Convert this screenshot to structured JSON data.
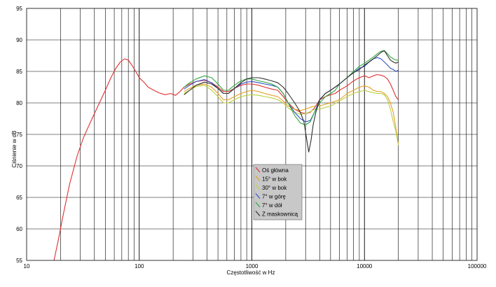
{
  "chart_data": {
    "type": "line",
    "title": "",
    "xlabel": "Częstotliwość w Hz",
    "ylabel": "Ciśnienie w dB",
    "x_scale": "log",
    "xlim": [
      10,
      100000
    ],
    "ylim": [
      55,
      95
    ],
    "x_ticks": [
      10,
      100,
      1000,
      10000,
      100000
    ],
    "x_tick_labels": [
      "10",
      "100",
      "1000",
      "10000",
      "100000"
    ],
    "y_ticks": [
      55,
      60,
      65,
      70,
      75,
      80,
      85,
      90,
      95
    ],
    "y_tick_labels": [
      "55",
      "60",
      "65",
      "70",
      "75",
      "80",
      "85",
      "90",
      "95"
    ],
    "grid": true,
    "legend_position": "center",
    "series": [
      {
        "name": "Oś główna",
        "color": "#e03030",
        "points": [
          [
            17.5,
            55
          ],
          [
            19,
            58
          ],
          [
            21,
            62
          ],
          [
            24,
            67
          ],
          [
            28,
            71.5
          ],
          [
            32,
            74.5
          ],
          [
            37,
            77
          ],
          [
            43,
            79.5
          ],
          [
            50,
            82
          ],
          [
            56,
            84
          ],
          [
            62,
            85.5
          ],
          [
            68,
            86.5
          ],
          [
            74,
            87
          ],
          [
            80,
            86.8
          ],
          [
            86,
            86
          ],
          [
            93,
            85
          ],
          [
            100,
            84
          ],
          [
            110,
            83.3
          ],
          [
            120,
            82.5
          ],
          [
            135,
            82
          ],
          [
            150,
            81.6
          ],
          [
            170,
            81.3
          ],
          [
            190,
            81.5
          ],
          [
            210,
            81.2
          ],
          [
            230,
            81.8
          ],
          [
            250,
            82.5
          ],
          [
            280,
            83
          ],
          [
            320,
            83.4
          ],
          [
            380,
            83.6
          ],
          [
            440,
            83.2
          ],
          [
            500,
            82.5
          ],
          [
            560,
            81.8
          ],
          [
            620,
            81.8
          ],
          [
            700,
            82.3
          ],
          [
            800,
            82.8
          ],
          [
            900,
            83
          ],
          [
            1000,
            83
          ],
          [
            1150,
            82.8
          ],
          [
            1300,
            82.5
          ],
          [
            1500,
            82.2
          ],
          [
            1700,
            82
          ],
          [
            1900,
            81
          ],
          [
            2100,
            80
          ],
          [
            2400,
            79
          ],
          [
            2700,
            78.5
          ],
          [
            3000,
            78.3
          ],
          [
            3300,
            78.5
          ],
          [
            3600,
            79.2
          ],
          [
            4000,
            80.5
          ],
          [
            4500,
            81
          ],
          [
            5000,
            81.3
          ],
          [
            5500,
            81.5
          ],
          [
            6000,
            82
          ],
          [
            7000,
            82.7
          ],
          [
            8000,
            83.5
          ],
          [
            9000,
            84
          ],
          [
            10000,
            84.3
          ],
          [
            11000,
            84
          ],
          [
            12000,
            84.3
          ],
          [
            13000,
            84.5
          ],
          [
            14000,
            84.4
          ],
          [
            15000,
            84.2
          ],
          [
            16000,
            83.8
          ],
          [
            17000,
            83
          ],
          [
            18000,
            82
          ],
          [
            19000,
            81
          ],
          [
            20000,
            80.5
          ]
        ]
      },
      {
        "name": "15° w bok",
        "color": "#e6a020",
        "points": [
          [
            250,
            81.8
          ],
          [
            280,
            82.3
          ],
          [
            320,
            82.8
          ],
          [
            380,
            83
          ],
          [
            440,
            82.5
          ],
          [
            500,
            81.5
          ],
          [
            560,
            80.5
          ],
          [
            620,
            80.5
          ],
          [
            700,
            81
          ],
          [
            800,
            81.5
          ],
          [
            900,
            81.8
          ],
          [
            1000,
            82
          ],
          [
            1150,
            81.8
          ],
          [
            1300,
            81.5
          ],
          [
            1500,
            81.2
          ],
          [
            1700,
            81
          ],
          [
            1900,
            80.3
          ],
          [
            2100,
            79.5
          ],
          [
            2400,
            79
          ],
          [
            2700,
            78.8
          ],
          [
            3000,
            79
          ],
          [
            3300,
            79.3
          ],
          [
            3600,
            79.5
          ],
          [
            4000,
            79.5
          ],
          [
            4500,
            79.8
          ],
          [
            5000,
            80
          ],
          [
            6000,
            80.5
          ],
          [
            7000,
            81.5
          ],
          [
            8000,
            82
          ],
          [
            9000,
            82.5
          ],
          [
            10000,
            82.7
          ],
          [
            11000,
            82.5
          ],
          [
            12000,
            82
          ],
          [
            13000,
            81.8
          ],
          [
            14000,
            81.8
          ],
          [
            15000,
            81.5
          ],
          [
            16000,
            81
          ],
          [
            17000,
            80
          ],
          [
            18000,
            78.5
          ],
          [
            19000,
            76
          ],
          [
            20000,
            73.5
          ]
        ]
      },
      {
        "name": "30° w bok",
        "color": "#b8d040",
        "points": [
          [
            250,
            81.5
          ],
          [
            280,
            82
          ],
          [
            320,
            82.6
          ],
          [
            380,
            82.8
          ],
          [
            440,
            82
          ],
          [
            500,
            81
          ],
          [
            560,
            80
          ],
          [
            620,
            80
          ],
          [
            700,
            80.5
          ],
          [
            800,
            81
          ],
          [
            900,
            81.2
          ],
          [
            1000,
            81.3
          ],
          [
            1150,
            81.2
          ],
          [
            1300,
            81
          ],
          [
            1500,
            80.8
          ],
          [
            1700,
            80.5
          ],
          [
            1900,
            80
          ],
          [
            2100,
            79.2
          ],
          [
            2400,
            78.5
          ],
          [
            2700,
            78.2
          ],
          [
            3000,
            78.3
          ],
          [
            3300,
            78.6
          ],
          [
            3600,
            79
          ],
          [
            4000,
            79
          ],
          [
            4500,
            79.3
          ],
          [
            5000,
            79.5
          ],
          [
            6000,
            80.3
          ],
          [
            7000,
            81
          ],
          [
            8000,
            81.5
          ],
          [
            9000,
            81.8
          ],
          [
            10000,
            82
          ],
          [
            11000,
            81.8
          ],
          [
            12000,
            81.6
          ],
          [
            13000,
            81.5
          ],
          [
            14000,
            81.5
          ],
          [
            15000,
            81.3
          ],
          [
            16000,
            80.5
          ],
          [
            17000,
            79
          ],
          [
            18000,
            77
          ],
          [
            19000,
            75.5
          ],
          [
            20000,
            73.3
          ]
        ]
      },
      {
        "name": "7° w górę",
        "color": "#3050c8",
        "points": [
          [
            250,
            82.2
          ],
          [
            280,
            82.8
          ],
          [
            320,
            83.4
          ],
          [
            380,
            83.7
          ],
          [
            440,
            83.2
          ],
          [
            500,
            82.3
          ],
          [
            560,
            81.5
          ],
          [
            620,
            81.5
          ],
          [
            700,
            82.3
          ],
          [
            800,
            83
          ],
          [
            900,
            83.3
          ],
          [
            1000,
            83.4
          ],
          [
            1150,
            83.2
          ],
          [
            1300,
            83
          ],
          [
            1500,
            82.8
          ],
          [
            1700,
            82.5
          ],
          [
            1900,
            81.5
          ],
          [
            2100,
            80
          ],
          [
            2400,
            78.5
          ],
          [
            2700,
            77.5
          ],
          [
            3000,
            77
          ],
          [
            3300,
            77.2
          ],
          [
            3600,
            78.5
          ],
          [
            4000,
            80.5
          ],
          [
            4500,
            81.5
          ],
          [
            5000,
            82
          ],
          [
            5500,
            82.5
          ],
          [
            6000,
            83
          ],
          [
            7000,
            84
          ],
          [
            8000,
            84.8
          ],
          [
            9000,
            85.5
          ],
          [
            10000,
            85.8
          ],
          [
            11000,
            86.5
          ],
          [
            12000,
            87
          ],
          [
            13000,
            87.2
          ],
          [
            14000,
            87
          ],
          [
            15000,
            86.5
          ],
          [
            16000,
            86
          ],
          [
            17000,
            85.5
          ],
          [
            18000,
            85.3
          ],
          [
            19000,
            85
          ],
          [
            20000,
            85.2
          ]
        ]
      },
      {
        "name": "7° w dół",
        "color": "#30a840",
        "points": [
          [
            250,
            82.5
          ],
          [
            280,
            83.2
          ],
          [
            320,
            83.8
          ],
          [
            380,
            84.3
          ],
          [
            440,
            84
          ],
          [
            500,
            83
          ],
          [
            560,
            82
          ],
          [
            620,
            82
          ],
          [
            700,
            82.8
          ],
          [
            800,
            83.5
          ],
          [
            900,
            83.8
          ],
          [
            1000,
            83.8
          ],
          [
            1150,
            83.5
          ],
          [
            1300,
            83.3
          ],
          [
            1500,
            83
          ],
          [
            1700,
            82.5
          ],
          [
            1900,
            81.5
          ],
          [
            2100,
            80
          ],
          [
            2400,
            78
          ],
          [
            2700,
            76.8
          ],
          [
            3000,
            76.5
          ],
          [
            3300,
            77
          ],
          [
            3600,
            78.5
          ],
          [
            4000,
            80
          ],
          [
            4500,
            81
          ],
          [
            5000,
            81.5
          ],
          [
            5500,
            82
          ],
          [
            6000,
            83
          ],
          [
            7000,
            84
          ],
          [
            8000,
            85
          ],
          [
            9000,
            85.8
          ],
          [
            10000,
            86.3
          ],
          [
            11000,
            86.8
          ],
          [
            12000,
            87.3
          ],
          [
            13000,
            87.8
          ],
          [
            14000,
            88.2
          ],
          [
            15000,
            88.3
          ],
          [
            16000,
            87.8
          ],
          [
            17000,
            87.3
          ],
          [
            18000,
            87
          ],
          [
            19000,
            86.8
          ],
          [
            20000,
            86.8
          ]
        ]
      },
      {
        "name": "Z maskownicą",
        "color": "#303030",
        "points": [
          [
            250,
            81.3
          ],
          [
            280,
            82
          ],
          [
            320,
            82.8
          ],
          [
            380,
            83.3
          ],
          [
            440,
            83
          ],
          [
            500,
            82.3
          ],
          [
            560,
            81.5
          ],
          [
            620,
            81.5
          ],
          [
            700,
            82.3
          ],
          [
            800,
            83.2
          ],
          [
            900,
            83.8
          ],
          [
            1000,
            84
          ],
          [
            1150,
            84
          ],
          [
            1300,
            83.8
          ],
          [
            1500,
            83.5
          ],
          [
            1700,
            83.2
          ],
          [
            1900,
            82.5
          ],
          [
            2100,
            81.5
          ],
          [
            2400,
            80
          ],
          [
            2700,
            78.5
          ],
          [
            2900,
            77
          ],
          [
            3050,
            74.5
          ],
          [
            3200,
            72.2
          ],
          [
            3350,
            74
          ],
          [
            3500,
            76.5
          ],
          [
            3700,
            78.5
          ],
          [
            4000,
            80.5
          ],
          [
            4500,
            81.5
          ],
          [
            5000,
            82
          ],
          [
            6000,
            83
          ],
          [
            7000,
            84
          ],
          [
            8000,
            84.8
          ],
          [
            9000,
            85.3
          ],
          [
            10000,
            86
          ],
          [
            11000,
            86.5
          ],
          [
            12000,
            87
          ],
          [
            13000,
            87.5
          ],
          [
            14000,
            88
          ],
          [
            15000,
            88.3
          ],
          [
            16000,
            87.5
          ],
          [
            17000,
            86.8
          ],
          [
            18000,
            86.5
          ],
          [
            19000,
            86.3
          ],
          [
            20000,
            86.5
          ]
        ]
      }
    ]
  }
}
